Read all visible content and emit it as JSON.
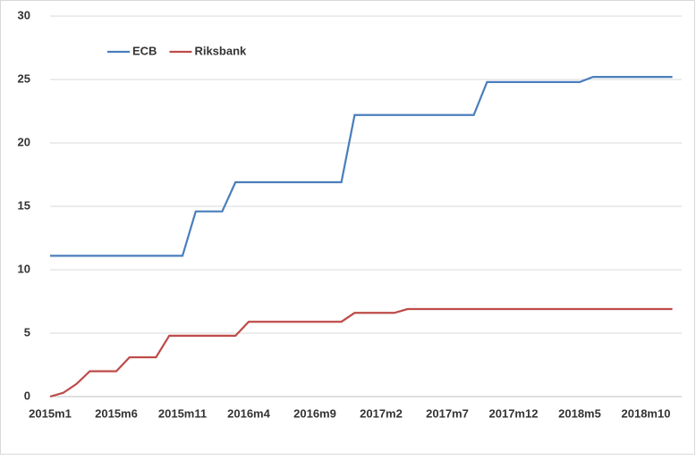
{
  "chart_data": {
    "type": "line",
    "categories": [
      "2015m1",
      null,
      null,
      null,
      null,
      "2015m6",
      null,
      null,
      null,
      null,
      "2015m11",
      null,
      null,
      null,
      null,
      "2016m4",
      null,
      null,
      null,
      null,
      "2016m9",
      null,
      null,
      null,
      null,
      "2017m2",
      null,
      null,
      null,
      null,
      "2017m7",
      null,
      null,
      null,
      null,
      "2017m12",
      null,
      null,
      null,
      null,
      "2018m5",
      null,
      null,
      null,
      null,
      "2018m10",
      null,
      null
    ],
    "series": [
      {
        "name": "ECB",
        "color": "#4a7ebb",
        "values": [
          11.1,
          11.1,
          11.1,
          11.1,
          11.1,
          11.1,
          11.1,
          11.1,
          11.1,
          11.1,
          11.1,
          14.6,
          14.6,
          14.6,
          16.9,
          16.9,
          16.9,
          16.9,
          16.9,
          16.9,
          16.9,
          16.9,
          16.9,
          22.2,
          22.2,
          22.2,
          22.2,
          22.2,
          22.2,
          22.2,
          22.2,
          22.2,
          22.2,
          24.8,
          24.8,
          24.8,
          24.8,
          24.8,
          24.8,
          24.8,
          24.8,
          25.2,
          25.2,
          25.2,
          25.2,
          25.2,
          25.2,
          25.2
        ]
      },
      {
        "name": "Riksbank",
        "color": "#be4b48",
        "values": [
          0,
          0.3,
          1.0,
          2.0,
          2.0,
          2.0,
          3.1,
          3.1,
          3.1,
          4.8,
          4.8,
          4.8,
          4.8,
          4.8,
          4.8,
          5.9,
          5.9,
          5.9,
          5.9,
          5.9,
          5.9,
          5.9,
          5.9,
          6.6,
          6.6,
          6.6,
          6.6,
          6.9,
          6.9,
          6.9,
          6.9,
          6.9,
          6.9,
          6.9,
          6.9,
          6.9,
          6.9,
          6.9,
          6.9,
          6.9,
          6.9,
          6.9,
          6.9,
          6.9,
          6.9,
          6.9,
          6.9,
          6.9
        ]
      }
    ],
    "ylim": [
      0,
      30
    ],
    "yticks": [
      0,
      5,
      10,
      15,
      20,
      25,
      30
    ],
    "grid": true,
    "legend": "top-left"
  }
}
